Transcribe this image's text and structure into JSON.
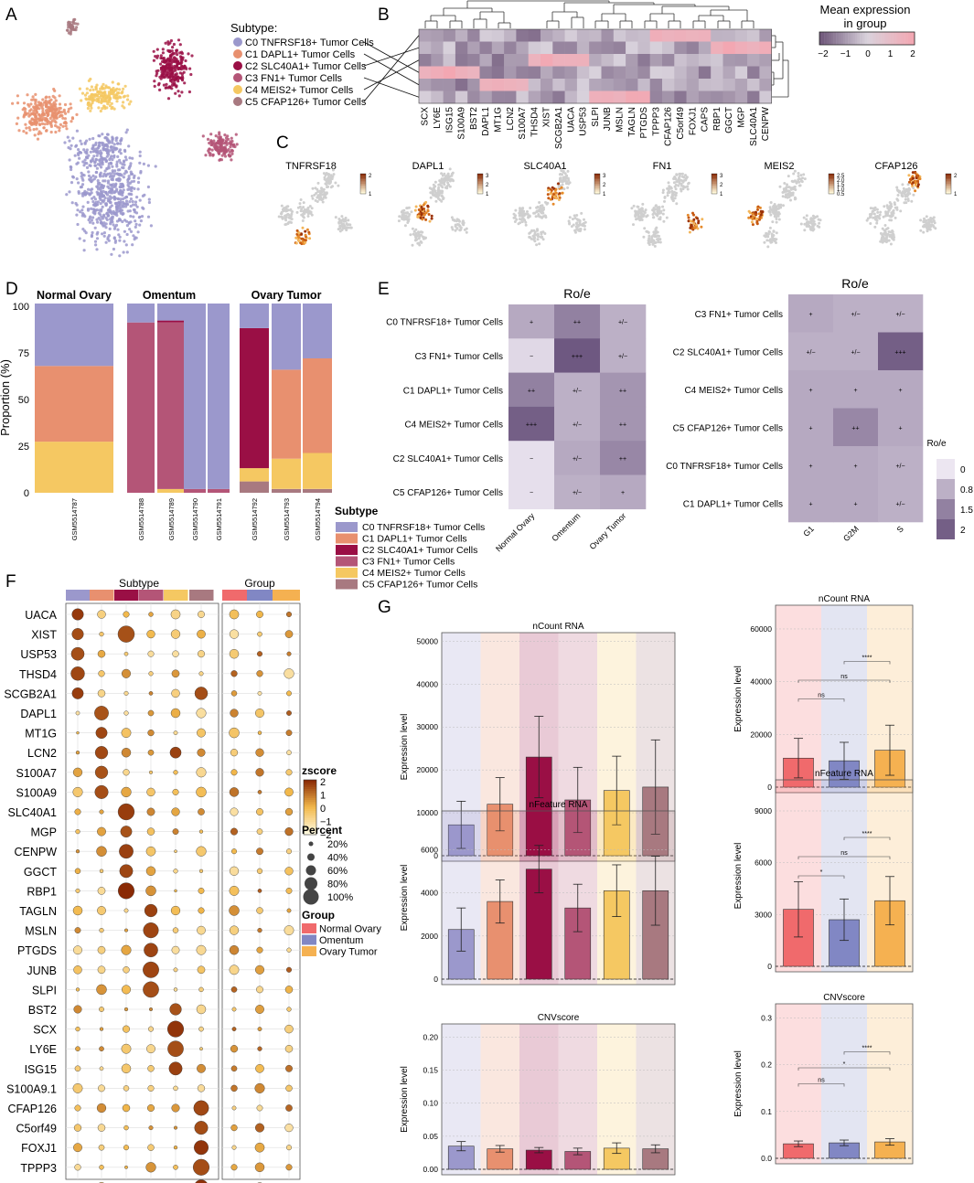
{
  "panels": {
    "A": "A",
    "B": "B",
    "C": "C",
    "D": "D",
    "E": "E",
    "F": "F",
    "G": "G"
  },
  "colors": {
    "C0": "#9b98cc",
    "C1": "#e8906f",
    "C2": "#9a0f45",
    "C3": "#b45577",
    "C4": "#f5c862",
    "C5": "#a87980",
    "normal": "#f06a6c",
    "omentum": "#8187c4",
    "ovary": "#f5b151"
  },
  "subtypes": [
    {
      "key": "C0",
      "label": "C0 TNFRSF18+ Tumor Cells"
    },
    {
      "key": "C1",
      "label": "C1 DAPL1+ Tumor Cells"
    },
    {
      "key": "C2",
      "label": "C2 SLC40A1+ Tumor Cells"
    },
    {
      "key": "C3",
      "label": "C3 FN1+ Tumor Cells"
    },
    {
      "key": "C4",
      "label": "C4 MEIS2+ Tumor Cells"
    },
    {
      "key": "C5",
      "label": "C5 CFAP126+ Tumor Cells"
    }
  ],
  "panelA": {
    "legend_title": "Subtype:"
  },
  "panelB": {
    "legend_title": "Mean expression\nin group",
    "scale_ticks": [
      "−2",
      "−1",
      "0",
      "1",
      "2"
    ],
    "genes": [
      "SCX",
      "LY6E",
      "ISG15",
      "S100A9",
      "BST2",
      "DAPL1",
      "MT1G",
      "LCN2",
      "S100A7",
      "THSD4",
      "XIST",
      "SCGB2A1",
      "UACA",
      "USP53",
      "SLPI",
      "JUNB",
      "MSLN",
      "TAGLN",
      "PTGDS",
      "TPPP3",
      "CFAP126",
      "C5orf49",
      "FOXJ1",
      "CAPS",
      "RBP1",
      "GGCT",
      "MGP",
      "SLC40A1",
      "CENPW"
    ],
    "high_genes": [
      [
        "TPPP3",
        "CFAP126",
        "C5orf49",
        "FOXJ1",
        "CAPS"
      ],
      [
        "RBP1",
        "GGCT",
        "MGP",
        "SLC40A1",
        "CENPW"
      ],
      [
        "THSD4",
        "XIST",
        "SCGB2A1",
        "UACA",
        "USP53"
      ],
      [
        "SCX",
        "LY6E",
        "ISG15",
        "S100A9",
        "BST2"
      ],
      [
        "DAPL1",
        "MT1G",
        "LCN2",
        "S100A7"
      ],
      [
        "SLPI",
        "JUNB",
        "MSLN",
        "TAGLN",
        "PTGDS"
      ]
    ]
  },
  "panelC": {
    "genes": [
      "TNFRSF18",
      "DAPL1",
      "SLC40A1",
      "FN1",
      "MEIS2",
      "CFAP126"
    ],
    "scales": [
      [
        "2",
        "1"
      ],
      [
        "3",
        "2",
        "1"
      ],
      [
        "3",
        "2",
        "1"
      ],
      [
        "3",
        "2",
        "1"
      ],
      [
        "2.5",
        "2.0",
        "1.5",
        "1.0",
        "0.5"
      ],
      [
        "2",
        "1"
      ]
    ]
  },
  "panelD": {
    "ylabel": "Proportion (%)",
    "yticks": [
      "0",
      "25",
      "50",
      "75",
      "100"
    ],
    "groups": [
      {
        "title": "Normal Ovary",
        "samples": [
          "GSM5514787"
        ]
      },
      {
        "title": "Omentum",
        "samples": [
          "GSM5514788",
          "GSM5514789",
          "GSM5514790",
          "GSM5514791"
        ]
      },
      {
        "title": "Ovary Tumor",
        "samples": [
          "GSM5514792",
          "GSM5514793",
          "GSM5514794"
        ]
      }
    ],
    "legend_title": "Subtype",
    "chart_data": {
      "type": "bar",
      "stacked": true,
      "categories": [
        "GSM5514787",
        "GSM5514788",
        "GSM5514789",
        "GSM5514790",
        "GSM5514791",
        "GSM5514792",
        "GSM5514793",
        "GSM5514794"
      ],
      "series": [
        {
          "name": "C5",
          "values": [
            0,
            0,
            0,
            0,
            0,
            6,
            2,
            2
          ]
        },
        {
          "name": "C4",
          "values": [
            27,
            0,
            2,
            0,
            0,
            7,
            16,
            19
          ]
        },
        {
          "name": "C1",
          "values": [
            40,
            0,
            0,
            0,
            0,
            0,
            47,
            50
          ]
        },
        {
          "name": "C3",
          "values": [
            0,
            90,
            88,
            2,
            2,
            0,
            0,
            0
          ]
        },
        {
          "name": "C2",
          "values": [
            0,
            0,
            1,
            0,
            0,
            74,
            0,
            0
          ]
        },
        {
          "name": "C0",
          "values": [
            33,
            10,
            9,
            98,
            98,
            13,
            35,
            29
          ]
        }
      ]
    }
  },
  "panelE": {
    "title": "Ro/e",
    "left": {
      "rows": [
        "C0 TNFRSF18+ Tumor Cells",
        "C3 FN1+ Tumor Cells",
        "C1 DAPL1+ Tumor Cells",
        "C4 MEIS2+ Tumor Cells",
        "C2 SLC40A1+ Tumor Cells",
        "C5 CFAP126+ Tumor Cells"
      ],
      "cols": [
        "Normal Ovary",
        "Omentum",
        "Ovary Tumor"
      ],
      "values": [
        [
          0.9,
          1.5,
          0.8
        ],
        [
          0.2,
          2.1,
          0.8
        ],
        [
          1.5,
          0.8,
          1.2
        ],
        [
          2.0,
          0.8,
          1.2
        ],
        [
          0.1,
          0.9,
          1.4
        ],
        [
          0.1,
          0.8,
          0.9
        ]
      ],
      "labels": [
        [
          "+",
          "++",
          "+/−"
        ],
        [
          "−",
          "+++",
          "+/−"
        ],
        [
          "++",
          "+/−",
          "++"
        ],
        [
          "+++",
          "+/−",
          "++"
        ],
        [
          "−",
          "+/−",
          "++"
        ],
        [
          "−",
          "+/−",
          "+"
        ]
      ]
    },
    "right": {
      "rows": [
        "C3 FN1+ Tumor Cells",
        "C2 SLC40A1+ Tumor Cells",
        "C4 MEIS2+ Tumor Cells",
        "C5 CFAP126+ Tumor Cells",
        "C0 TNFRSF18+ Tumor Cells",
        "C1 DAPL1+ Tumor Cells"
      ],
      "cols": [
        "G1",
        "G2M",
        "S"
      ],
      "values": [
        [
          0.9,
          0.8,
          0.8
        ],
        [
          0.8,
          0.8,
          2.0
        ],
        [
          0.9,
          0.9,
          0.9
        ],
        [
          0.9,
          1.4,
          0.9
        ],
        [
          0.9,
          0.9,
          0.8
        ],
        [
          0.9,
          0.9,
          0.8
        ]
      ],
      "labels": [
        [
          "+",
          "+/−",
          "+/−"
        ],
        [
          "+/−",
          "+/−",
          "+++"
        ],
        [
          "+",
          "+",
          "+"
        ],
        [
          "+",
          "++",
          "+"
        ],
        [
          "+",
          "+",
          "+/−"
        ],
        [
          "+",
          "+",
          "+/−"
        ]
      ]
    },
    "legend_title": "Ro/e",
    "legend_ticks": [
      "0",
      "0.8",
      "1.5",
      "2"
    ]
  },
  "panelF": {
    "subtype_label": "Subtype",
    "group_label": "Group",
    "genes": [
      "UACA",
      "XIST",
      "USP53",
      "THSD4",
      "SCGB2A1",
      "DAPL1",
      "MT1G",
      "LCN2",
      "S100A7",
      "S100A9",
      "SLC40A1",
      "MGP",
      "CENPW",
      "GGCT",
      "RBP1",
      "TAGLN",
      "MSLN",
      "PTGDS",
      "JUNB",
      "SLPI",
      "BST2",
      "SCX",
      "LY6E",
      "ISG15",
      "S100A9.1",
      "CFAP126",
      "C5orf49",
      "FOXJ1",
      "TPPP3",
      "CAPS"
    ],
    "zscore_title": "zscore",
    "zscore_ticks": [
      "2",
      "1",
      "0",
      "−1",
      "−2"
    ],
    "percent_title": "Percent",
    "percent_ticks": [
      "20%",
      "40%",
      "60%",
      "80%",
      "100%"
    ],
    "group_title": "Group",
    "groups": [
      {
        "key": "normal",
        "label": "Normal Ovary"
      },
      {
        "key": "omentum",
        "label": "Omentum"
      },
      {
        "key": "ovary",
        "label": "Ovary Tumor"
      }
    ]
  },
  "panelG": {
    "ylabel": "Expression level",
    "left_charts": [
      {
        "title": "nCount RNA",
        "yticks": [
          "0",
          "10000",
          "20000",
          "30000",
          "40000",
          "50000"
        ],
        "ymax": 52000,
        "chart_data": {
          "type": "bar",
          "categories": [
            "C0",
            "C1",
            "C2",
            "C3",
            "C4",
            "C5"
          ],
          "values": [
            7200,
            12000,
            23000,
            13000,
            15200,
            16000
          ],
          "err": [
            5500,
            6200,
            9500,
            7600,
            8000,
            11000
          ]
        }
      },
      {
        "title": "nFeature RNA",
        "yticks": [
          "0",
          "2000",
          "4000",
          "6000"
        ],
        "ymax": 7800,
        "chart_data": {
          "type": "bar",
          "categories": [
            "C0",
            "C1",
            "C2",
            "C3",
            "C4",
            "C5"
          ],
          "values": [
            2300,
            3600,
            5100,
            3300,
            4100,
            4100
          ],
          "err": [
            1000,
            1000,
            1100,
            1100,
            1200,
            1600
          ]
        }
      },
      {
        "title": "CNVscore",
        "yticks": [
          "0.00",
          "0.05",
          "0.10",
          "0.15",
          "0.20"
        ],
        "ymax": 0.22,
        "chart_data": {
          "type": "bar",
          "categories": [
            "C0",
            "C1",
            "C2",
            "C3",
            "C4",
            "C5"
          ],
          "values": [
            0.035,
            0.031,
            0.029,
            0.027,
            0.032,
            0.031
          ],
          "err": [
            0.007,
            0.005,
            0.004,
            0.005,
            0.008,
            0.006
          ]
        }
      }
    ],
    "right_charts": [
      {
        "title": "nCount RNA",
        "yticks": [
          "0",
          "20000",
          "40000",
          "60000"
        ],
        "ymax": 69000,
        "sig": [
          "ns",
          "ns",
          "****"
        ],
        "chart_data": {
          "type": "bar",
          "categories": [
            "Normal Ovary",
            "Omentum",
            "Ovary Tumor"
          ],
          "values": [
            11000,
            10000,
            14000
          ],
          "err": [
            7500,
            7000,
            9500
          ]
        }
      },
      {
        "title": "nFeature RNA",
        "yticks": [
          "0",
          "3000",
          "6000",
          "9000"
        ],
        "ymax": 10800,
        "sig": [
          "*",
          "ns",
          "****"
        ],
        "chart_data": {
          "type": "bar",
          "categories": [
            "Normal Ovary",
            "Omentum",
            "Ovary Tumor"
          ],
          "values": [
            3300,
            2700,
            3800
          ],
          "err": [
            1600,
            1200,
            1400
          ]
        }
      },
      {
        "title": "CNVscore",
        "yticks": [
          "0.0",
          "0.1",
          "0.2",
          "0.3"
        ],
        "ymax": 0.33,
        "sig": [
          "ns",
          "*",
          "****"
        ],
        "chart_data": {
          "type": "bar",
          "categories": [
            "Normal Ovary",
            "Omentum",
            "Ovary Tumor"
          ],
          "values": [
            0.031,
            0.033,
            0.035
          ],
          "err": [
            0.006,
            0.006,
            0.007
          ]
        }
      }
    ]
  }
}
